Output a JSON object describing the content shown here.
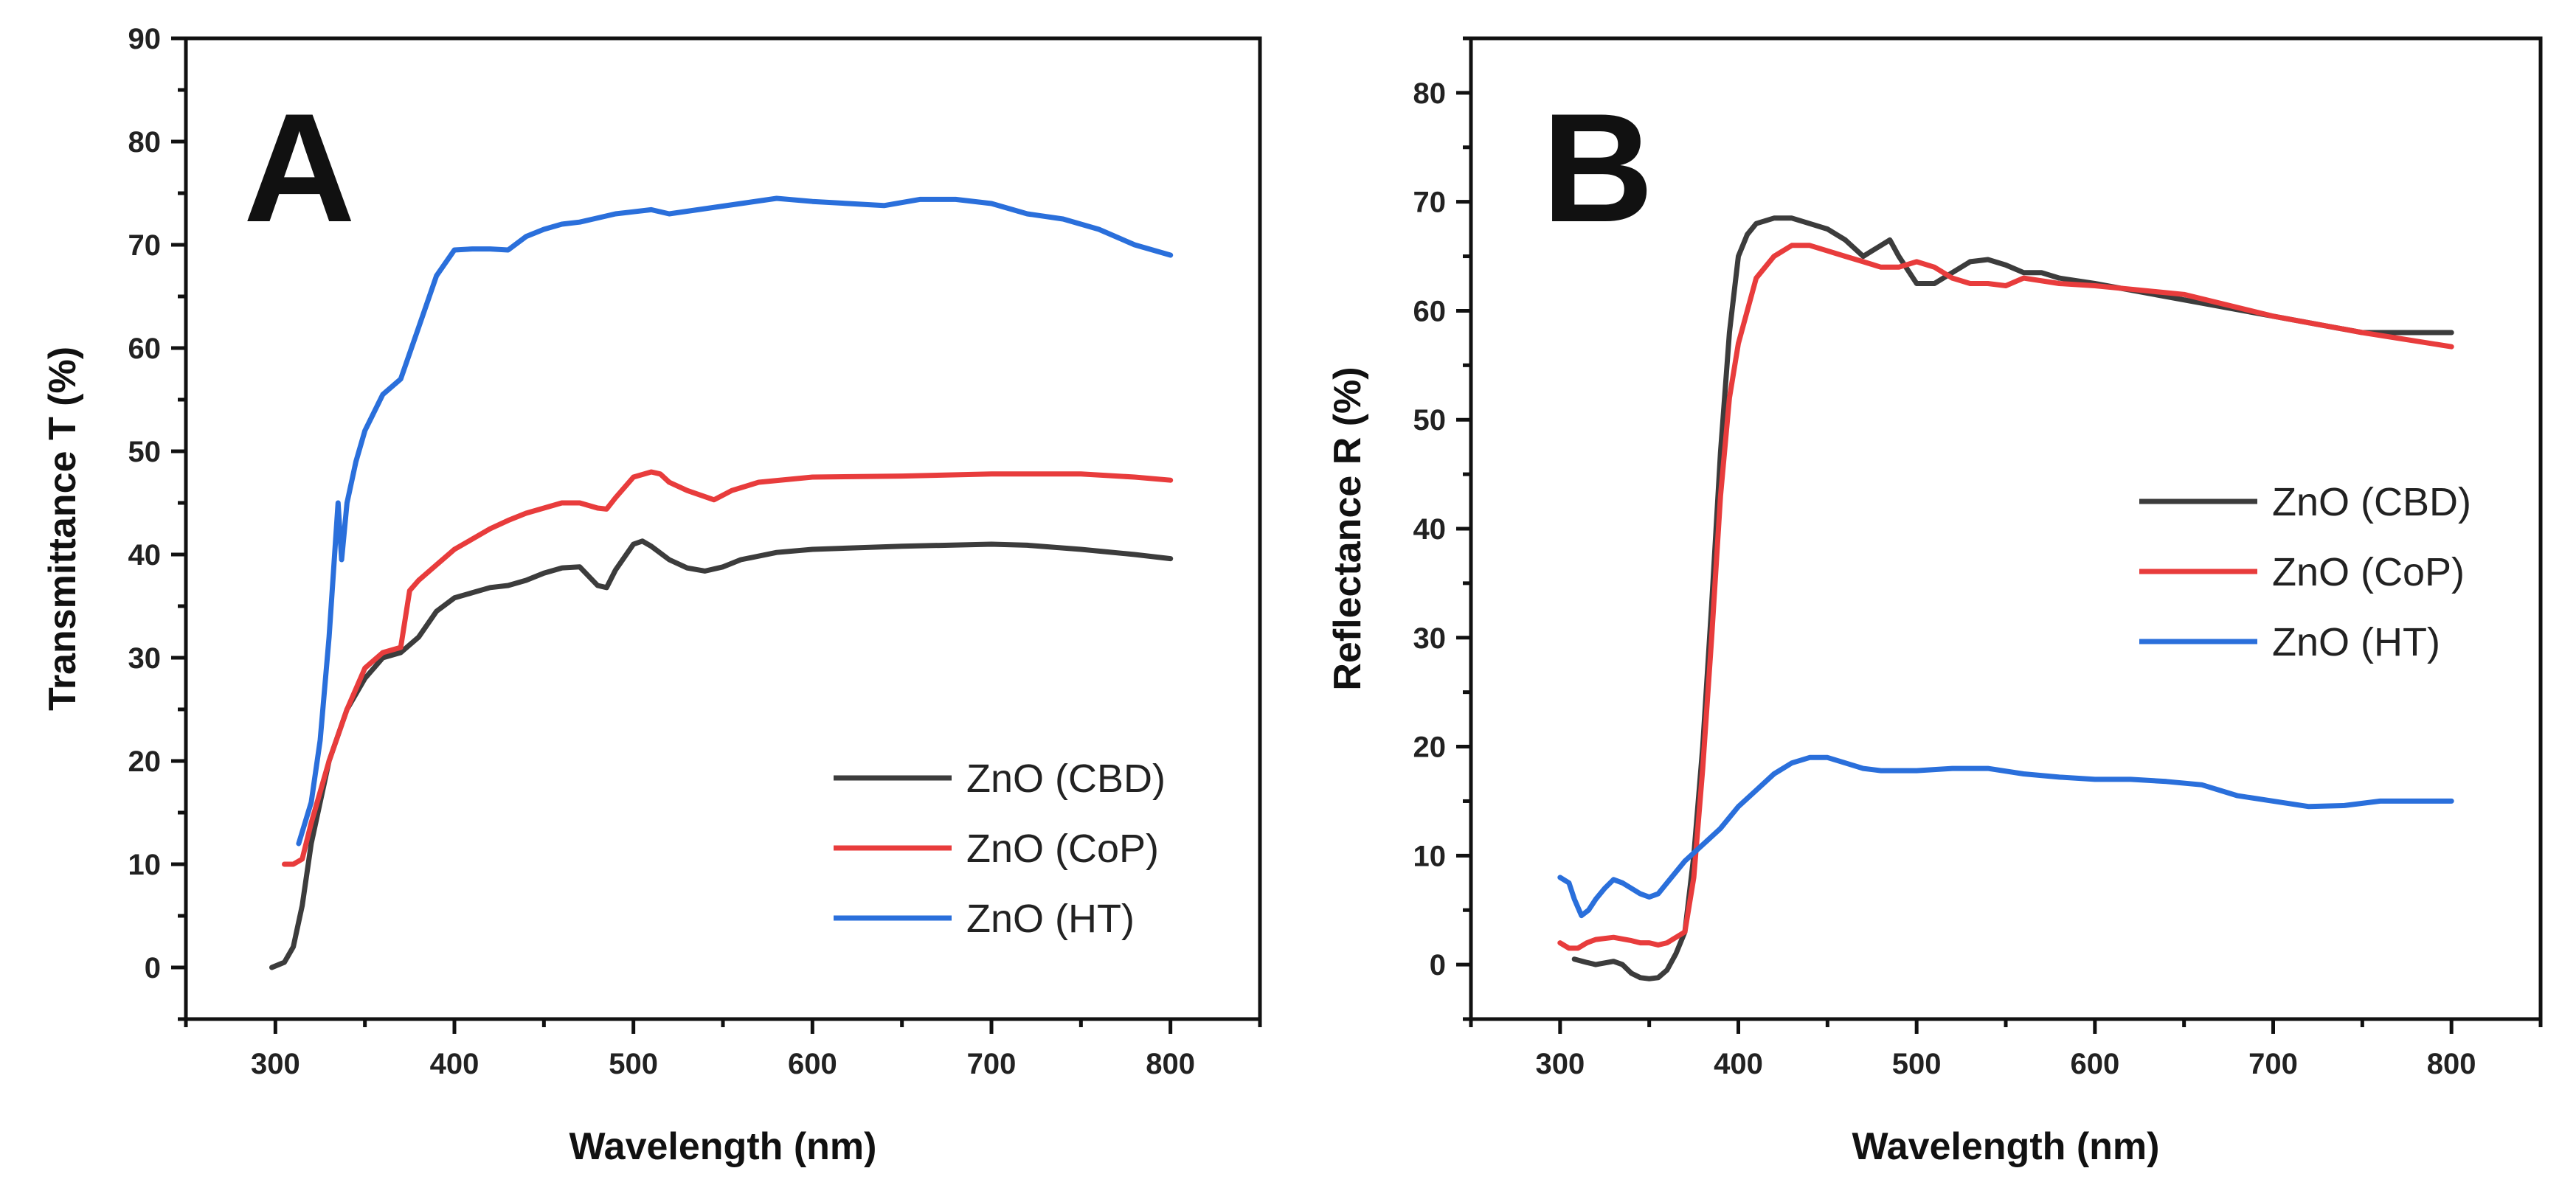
{
  "chart_data": [
    {
      "type": "line",
      "panel_label": "A",
      "xlabel": "Wavelength (nm)",
      "ylabel": "Transmittance T (%)",
      "xlim": [
        250,
        850
      ],
      "ylim": [
        -5,
        90
      ],
      "xticks": [
        300,
        400,
        500,
        600,
        700,
        800
      ],
      "yticks": [
        0,
        10,
        20,
        30,
        40,
        50,
        60,
        70,
        80,
        90
      ],
      "grid": false,
      "legend_position": "bottom-right",
      "series": [
        {
          "name": "ZnO (CBD)",
          "color": "#3c3c3c",
          "x": [
            298,
            305,
            310,
            315,
            320,
            330,
            340,
            350,
            360,
            370,
            380,
            390,
            400,
            410,
            420,
            430,
            440,
            450,
            460,
            470,
            480,
            485,
            490,
            500,
            505,
            510,
            520,
            530,
            540,
            550,
            560,
            580,
            600,
            650,
            700,
            720,
            750,
            780,
            800
          ],
          "y": [
            0,
            0.5,
            2,
            6,
            12,
            20,
            25,
            28,
            30,
            30.5,
            32,
            34.5,
            35.8,
            36.3,
            36.8,
            37,
            37.5,
            38.2,
            38.7,
            38.8,
            37,
            36.8,
            38.5,
            41,
            41.3,
            40.8,
            39.5,
            38.7,
            38.4,
            38.8,
            39.5,
            40.2,
            40.5,
            40.8,
            41,
            40.9,
            40.5,
            40,
            39.6
          ]
        },
        {
          "name": "ZnO (CoP)",
          "color": "#e83c3c",
          "x": [
            305,
            310,
            315,
            320,
            330,
            340,
            350,
            360,
            370,
            375,
            380,
            390,
            400,
            410,
            420,
            430,
            440,
            450,
            460,
            470,
            480,
            485,
            490,
            500,
            510,
            515,
            520,
            530,
            545,
            555,
            570,
            600,
            650,
            700,
            750,
            780,
            800
          ],
          "y": [
            10,
            10,
            10.5,
            14,
            20,
            25,
            29,
            30.5,
            31,
            36.5,
            37.5,
            39,
            40.5,
            41.5,
            42.5,
            43.3,
            44,
            44.5,
            45,
            45,
            44.5,
            44.4,
            45.5,
            47.5,
            48,
            47.8,
            47,
            46.2,
            45.3,
            46.2,
            47,
            47.5,
            47.6,
            47.8,
            47.8,
            47.5,
            47.2
          ]
        },
        {
          "name": "ZnO (HT)",
          "color": "#2a6fdb",
          "x": [
            313,
            320,
            325,
            330,
            335,
            337,
            340,
            345,
            350,
            360,
            370,
            380,
            390,
            400,
            410,
            420,
            430,
            440,
            450,
            460,
            470,
            480,
            490,
            500,
            510,
            520,
            540,
            560,
            580,
            600,
            620,
            640,
            660,
            680,
            700,
            720,
            740,
            760,
            780,
            800
          ],
          "y": [
            12,
            16,
            22,
            32,
            45,
            39.5,
            45,
            49,
            52,
            55.5,
            57,
            62,
            67,
            69.5,
            69.6,
            69.6,
            69.5,
            70.8,
            71.5,
            72,
            72.2,
            72.6,
            73,
            73.2,
            73.4,
            73,
            73.5,
            74,
            74.5,
            74.2,
            74,
            73.8,
            74.4,
            74.4,
            74,
            73,
            72.5,
            71.5,
            70,
            69
          ]
        }
      ]
    },
    {
      "type": "line",
      "panel_label": "B",
      "xlabel": "Wavelength (nm)",
      "ylabel": "Reflectance R (%)",
      "xlim": [
        250,
        850
      ],
      "ylim": [
        -5,
        85
      ],
      "xticks": [
        300,
        400,
        500,
        600,
        700,
        800
      ],
      "yticks": [
        0,
        10,
        20,
        30,
        40,
        50,
        60,
        70,
        80
      ],
      "grid": false,
      "legend_position": "center-right",
      "series": [
        {
          "name": "ZnO (CBD)",
          "color": "#3c3c3c",
          "x": [
            308,
            315,
            320,
            330,
            335,
            340,
            345,
            350,
            355,
            360,
            365,
            370,
            375,
            380,
            385,
            390,
            395,
            400,
            405,
            410,
            420,
            430,
            440,
            450,
            460,
            470,
            480,
            485,
            490,
            500,
            510,
            520,
            530,
            540,
            550,
            560,
            570,
            580,
            600,
            650,
            700,
            750,
            800
          ],
          "y": [
            0.5,
            0.2,
            0,
            0.3,
            0,
            -0.8,
            -1.2,
            -1.3,
            -1.2,
            -0.5,
            1,
            3,
            10,
            20,
            33,
            47,
            58,
            65,
            67,
            68,
            68.5,
            68.5,
            68,
            67.5,
            66.5,
            65,
            66,
            66.5,
            65,
            62.5,
            62.5,
            63.5,
            64.5,
            64.7,
            64.2,
            63.5,
            63.5,
            63,
            62.5,
            61,
            59.5,
            58,
            58
          ]
        },
        {
          "name": "ZnO (CoP)",
          "color": "#e83c3c",
          "x": [
            300,
            305,
            310,
            315,
            320,
            330,
            340,
            345,
            350,
            355,
            360,
            365,
            370,
            375,
            380,
            385,
            390,
            395,
            400,
            405,
            410,
            420,
            430,
            440,
            450,
            460,
            470,
            480,
            490,
            500,
            510,
            520,
            530,
            540,
            550,
            560,
            580,
            600,
            650,
            700,
            750,
            800
          ],
          "y": [
            2,
            1.5,
            1.5,
            2,
            2.3,
            2.5,
            2.2,
            2,
            2,
            1.8,
            2,
            2.5,
            3,
            8,
            18,
            30,
            43,
            52,
            57,
            60,
            63,
            65,
            66,
            66,
            65.5,
            65,
            64.5,
            64,
            64,
            64.5,
            64,
            63,
            62.5,
            62.5,
            62.3,
            63,
            62.5,
            62.3,
            61.5,
            59.5,
            58,
            56.7
          ]
        },
        {
          "name": "ZnO (HT)",
          "color": "#2a6fdb",
          "x": [
            300,
            305,
            308,
            312,
            316,
            320,
            325,
            330,
            335,
            340,
            345,
            350,
            355,
            360,
            365,
            370,
            380,
            390,
            400,
            410,
            420,
            430,
            440,
            450,
            460,
            470,
            480,
            500,
            520,
            540,
            560,
            580,
            600,
            620,
            640,
            660,
            680,
            700,
            720,
            740,
            760,
            780,
            800
          ],
          "y": [
            8,
            7.5,
            6,
            4.5,
            5,
            6,
            7,
            7.8,
            7.5,
            7,
            6.5,
            6.2,
            6.5,
            7.5,
            8.5,
            9.5,
            11,
            12.5,
            14.5,
            16,
            17.5,
            18.5,
            19,
            19,
            18.5,
            18,
            17.8,
            17.8,
            18,
            18,
            17.5,
            17.2,
            17,
            17,
            16.8,
            16.5,
            15.5,
            15,
            14.5,
            14.6,
            15,
            15,
            15
          ]
        }
      ]
    }
  ]
}
